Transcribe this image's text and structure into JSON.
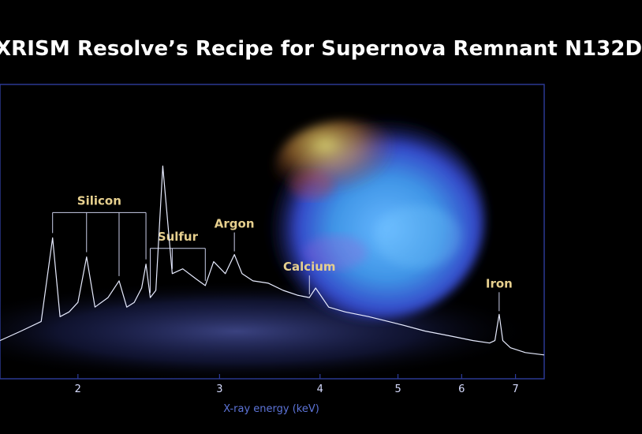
{
  "title": "XRISM Resolve’s Recipe for Supernova Remnant N132D",
  "colors": {
    "background": "#000000",
    "title": "#ffffff",
    "frame": "#2d3c9c",
    "spectrum": "#e8ecff",
    "glow": "#5f6ee0",
    "element_label": "#e6cf8e",
    "tick_label": "#d7dcff",
    "axis_label": "#5d74d8"
  },
  "chart_data": {
    "type": "line",
    "title": "XRISM Resolve’s Recipe for Supernova Remnant N132D",
    "xlabel": "X-ray energy (keV)",
    "ylabel": "",
    "x_scale": "log",
    "xlim": [
      1.6,
      7.6
    ],
    "ylim": [
      0,
      1
    ],
    "xticks": [
      2,
      3,
      4,
      5,
      6,
      7
    ],
    "xtick_labels": [
      "2",
      "3",
      "4",
      "5",
      "6",
      "7"
    ],
    "grid": false,
    "series": [
      {
        "name": "",
        "x": [
          1.6,
          1.7,
          1.8,
          1.86,
          1.9,
          1.95,
          2.0,
          2.05,
          2.1,
          2.18,
          2.25,
          2.3,
          2.35,
          2.4,
          2.43,
          2.46,
          2.5,
          2.55,
          2.62,
          2.7,
          2.8,
          2.88,
          2.95,
          3.05,
          3.13,
          3.2,
          3.3,
          3.45,
          3.6,
          3.75,
          3.88,
          3.95,
          4.1,
          4.3,
          4.6,
          5.0,
          5.4,
          5.8,
          6.2,
          6.5,
          6.6,
          6.68,
          6.75,
          6.9,
          7.2,
          7.6
        ],
        "y": [
          0.12,
          0.16,
          0.2,
          0.55,
          0.22,
          0.24,
          0.28,
          0.47,
          0.26,
          0.3,
          0.37,
          0.26,
          0.28,
          0.34,
          0.44,
          0.3,
          0.33,
          0.85,
          0.4,
          0.42,
          0.38,
          0.35,
          0.45,
          0.4,
          0.48,
          0.4,
          0.37,
          0.36,
          0.33,
          0.31,
          0.3,
          0.34,
          0.26,
          0.24,
          0.22,
          0.19,
          0.16,
          0.14,
          0.12,
          0.11,
          0.12,
          0.23,
          0.12,
          0.09,
          0.07,
          0.06
        ]
      }
    ],
    "annotations": [
      {
        "text": "Silicon",
        "x": [
          1.86,
          2.05,
          2.25,
          2.43
        ]
      },
      {
        "text": "Sulfur",
        "x": [
          2.46,
          2.62,
          2.88
        ]
      },
      {
        "text": "Argon",
        "x": [
          3.13
        ]
      },
      {
        "text": "Calcium",
        "x": [
          3.88
        ]
      },
      {
        "text": "Iron",
        "x": [
          6.68
        ]
      }
    ]
  }
}
